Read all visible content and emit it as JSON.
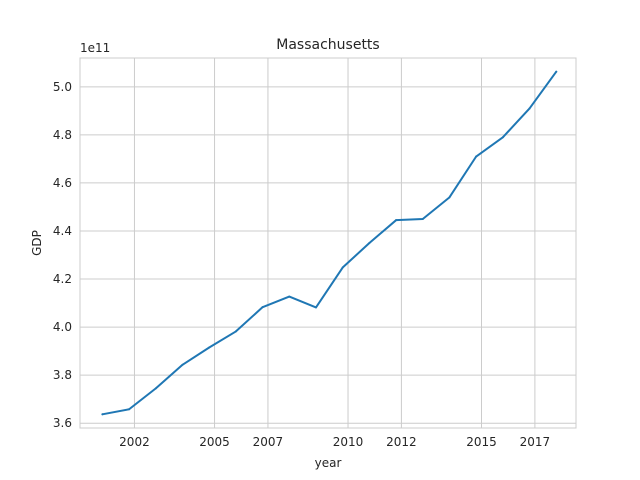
{
  "chart_data": {
    "type": "line",
    "title": "Massachusetts",
    "xlabel": "year",
    "ylabel": "GDP",
    "y_offset_label": "1e11",
    "xlim": [
      1999.96,
      2018.54
    ],
    "ylim": [
      3.58,
      5.12
    ],
    "grid": true,
    "x_ticks": [
      {
        "value": 2002,
        "label": "2002"
      },
      {
        "value": 2005,
        "label": "2005"
      },
      {
        "value": 2007,
        "label": "2007"
      },
      {
        "value": 2010,
        "label": "2010"
      },
      {
        "value": 2012,
        "label": "2012"
      },
      {
        "value": 2015,
        "label": "2015"
      },
      {
        "value": 2017,
        "label": "2017"
      }
    ],
    "y_ticks": [
      {
        "value": 3.6,
        "label": "3.6"
      },
      {
        "value": 3.8,
        "label": "3.8"
      },
      {
        "value": 4.0,
        "label": "4.0"
      },
      {
        "value": 4.2,
        "label": "4.2"
      },
      {
        "value": 4.4,
        "label": "4.4"
      },
      {
        "value": 4.6,
        "label": "4.6"
      },
      {
        "value": 4.8,
        "label": "4.8"
      },
      {
        "value": 5.0,
        "label": "5.0"
      }
    ],
    "series": [
      {
        "color": "#1f77b4",
        "x": [
          2000.8,
          2001.8,
          2002.8,
          2003.8,
          2004.8,
          2005.8,
          2006.8,
          2007.8,
          2008.8,
          2009.8,
          2010.8,
          2011.8,
          2012.8,
          2013.8,
          2014.8,
          2015.8,
          2016.8,
          2017.8
        ],
        "y": [
          3.637,
          3.658,
          3.745,
          3.843,
          3.915,
          3.982,
          4.083,
          4.127,
          4.082,
          4.248,
          4.35,
          4.445,
          4.45,
          4.54,
          4.71,
          4.79,
          4.91,
          5.063
        ]
      }
    ]
  }
}
